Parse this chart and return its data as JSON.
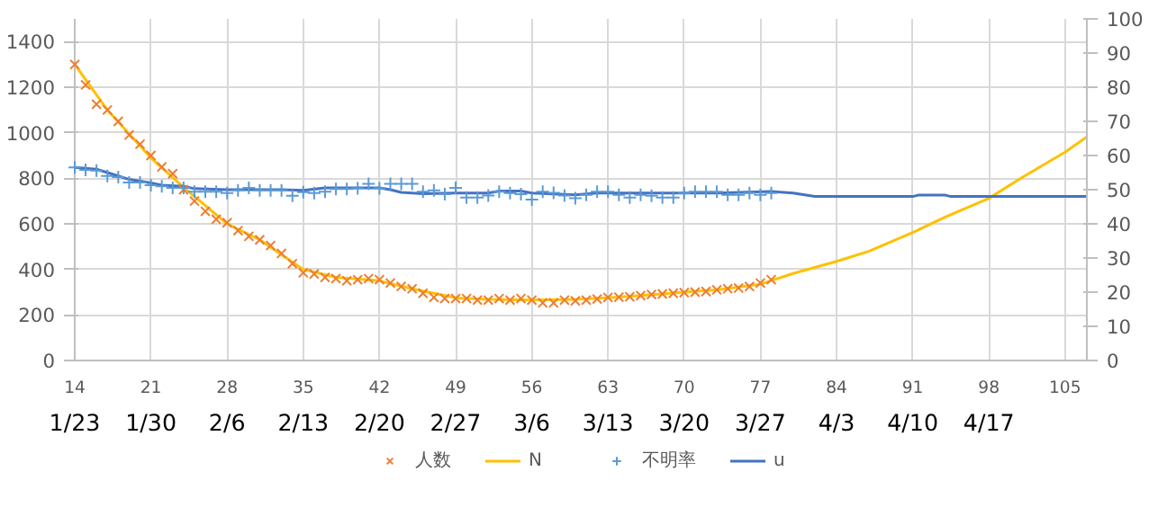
{
  "chart_data": {
    "type": "scatter",
    "x": [
      14,
      15,
      16,
      17,
      18,
      19,
      20,
      21,
      22,
      23,
      24,
      25,
      26,
      27,
      28,
      29,
      30,
      31,
      32,
      33,
      34,
      35,
      36,
      37,
      38,
      39,
      40,
      41,
      42,
      43,
      44,
      45,
      46,
      47,
      48,
      49,
      50,
      51,
      52,
      53,
      54,
      55,
      56,
      57,
      58,
      59,
      60,
      61,
      62,
      63,
      64,
      65,
      66,
      67,
      68,
      69,
      70,
      71,
      72,
      73,
      74,
      75,
      76,
      77,
      78
    ],
    "series": [
      {
        "name": "人数",
        "marker": "x",
        "color": "#ed7d31",
        "values": [
          1300,
          1210,
          1125,
          1100,
          1050,
          990,
          950,
          900,
          850,
          820,
          750,
          700,
          655,
          620,
          605,
          570,
          545,
          530,
          505,
          470,
          425,
          385,
          380,
          365,
          360,
          350,
          355,
          360,
          355,
          340,
          325,
          315,
          295,
          277,
          272,
          272,
          272,
          265,
          265,
          272,
          265,
          272,
          265,
          253,
          253,
          265,
          262,
          265,
          270,
          277,
          278,
          280,
          285,
          290,
          292,
          295,
          298,
          300,
          303,
          310,
          315,
          318,
          325,
          340,
          355
        ]
      },
      {
        "name": "N",
        "type": "line",
        "color": "#ffc000",
        "x": [
          14,
          17,
          21,
          24,
          28,
          31,
          35,
          38,
          42,
          45,
          49,
          52,
          56,
          60,
          63,
          66,
          70,
          73,
          77,
          80,
          84,
          87,
          91,
          94,
          98,
          101,
          105,
          107
        ],
        "values": [
          1300,
          1100,
          890,
          760,
          600,
          530,
          400,
          365,
          350,
          315,
          275,
          268,
          265,
          268,
          275,
          285,
          300,
          310,
          335,
          382,
          435,
          480,
          562,
          630,
          712,
          802,
          915,
          982
        ]
      },
      {
        "name": "不明率",
        "marker": "cross",
        "axis": "y2",
        "color": "#5b9bd5",
        "values": [
          56.5,
          55.8,
          55.6,
          54,
          53.7,
          52.1,
          52.1,
          51.3,
          51,
          50.5,
          50.5,
          49.4,
          49.4,
          49.4,
          49,
          49.8,
          50.5,
          49.8,
          49.8,
          49.8,
          48.2,
          49.3,
          49,
          49.4,
          50.2,
          50.2,
          50.4,
          51.7,
          50.4,
          51.7,
          51.7,
          51.7,
          49.4,
          49.8,
          48.7,
          50.5,
          47.7,
          47.7,
          48.3,
          49.4,
          49,
          48.7,
          47.1,
          49.4,
          49.1,
          48.3,
          47.5,
          48.5,
          49.4,
          49.4,
          48.5,
          47.7,
          48.5,
          48.2,
          47.7,
          47.7,
          49,
          49.4,
          49.4,
          49.4,
          48.5,
          48.5,
          49,
          48.5,
          49
        ]
      },
      {
        "name": "u",
        "type": "line",
        "axis": "y2",
        "color": "#4472c4",
        "x": [
          14,
          16,
          17,
          18,
          19,
          21,
          22,
          24,
          25,
          28,
          33,
          35,
          37,
          42,
          43,
          44,
          46,
          49,
          52,
          53,
          55,
          56,
          60,
          62,
          70,
          73,
          78,
          80,
          82,
          91,
          91.5,
          94,
          94.5,
          107
        ],
        "values": [
          56.5,
          56,
          55,
          54,
          53,
          52,
          51.3,
          51,
          50.3,
          50,
          50,
          49.8,
          50.5,
          50.5,
          50,
          49.2,
          48.8,
          49,
          49,
          49.6,
          49.6,
          49,
          48.5,
          49,
          49,
          49,
          49.5,
          49,
          48,
          48,
          48.4,
          48.4,
          48,
          48
        ]
      }
    ],
    "xlim": [
      14,
      107
    ],
    "xticks": [
      14,
      21,
      28,
      35,
      42,
      49,
      56,
      63,
      70,
      77,
      84,
      91,
      98,
      105
    ],
    "ylim": [
      0,
      1500
    ],
    "yticks": [
      0,
      200,
      400,
      600,
      800,
      1000,
      1200,
      1400
    ],
    "y2lim": [
      0,
      100
    ],
    "y2ticks": [
      0,
      10,
      20,
      30,
      40,
      50,
      60,
      70,
      80,
      90,
      100
    ],
    "annotations": [
      "1/23",
      "1/30",
      "2/6",
      "2/13",
      "2/20",
      "2/27",
      "3/6",
      "3/13",
      "3/20",
      "3/27",
      "4/3",
      "4/10",
      "4/17"
    ],
    "grid": true,
    "legend": "bottom"
  }
}
